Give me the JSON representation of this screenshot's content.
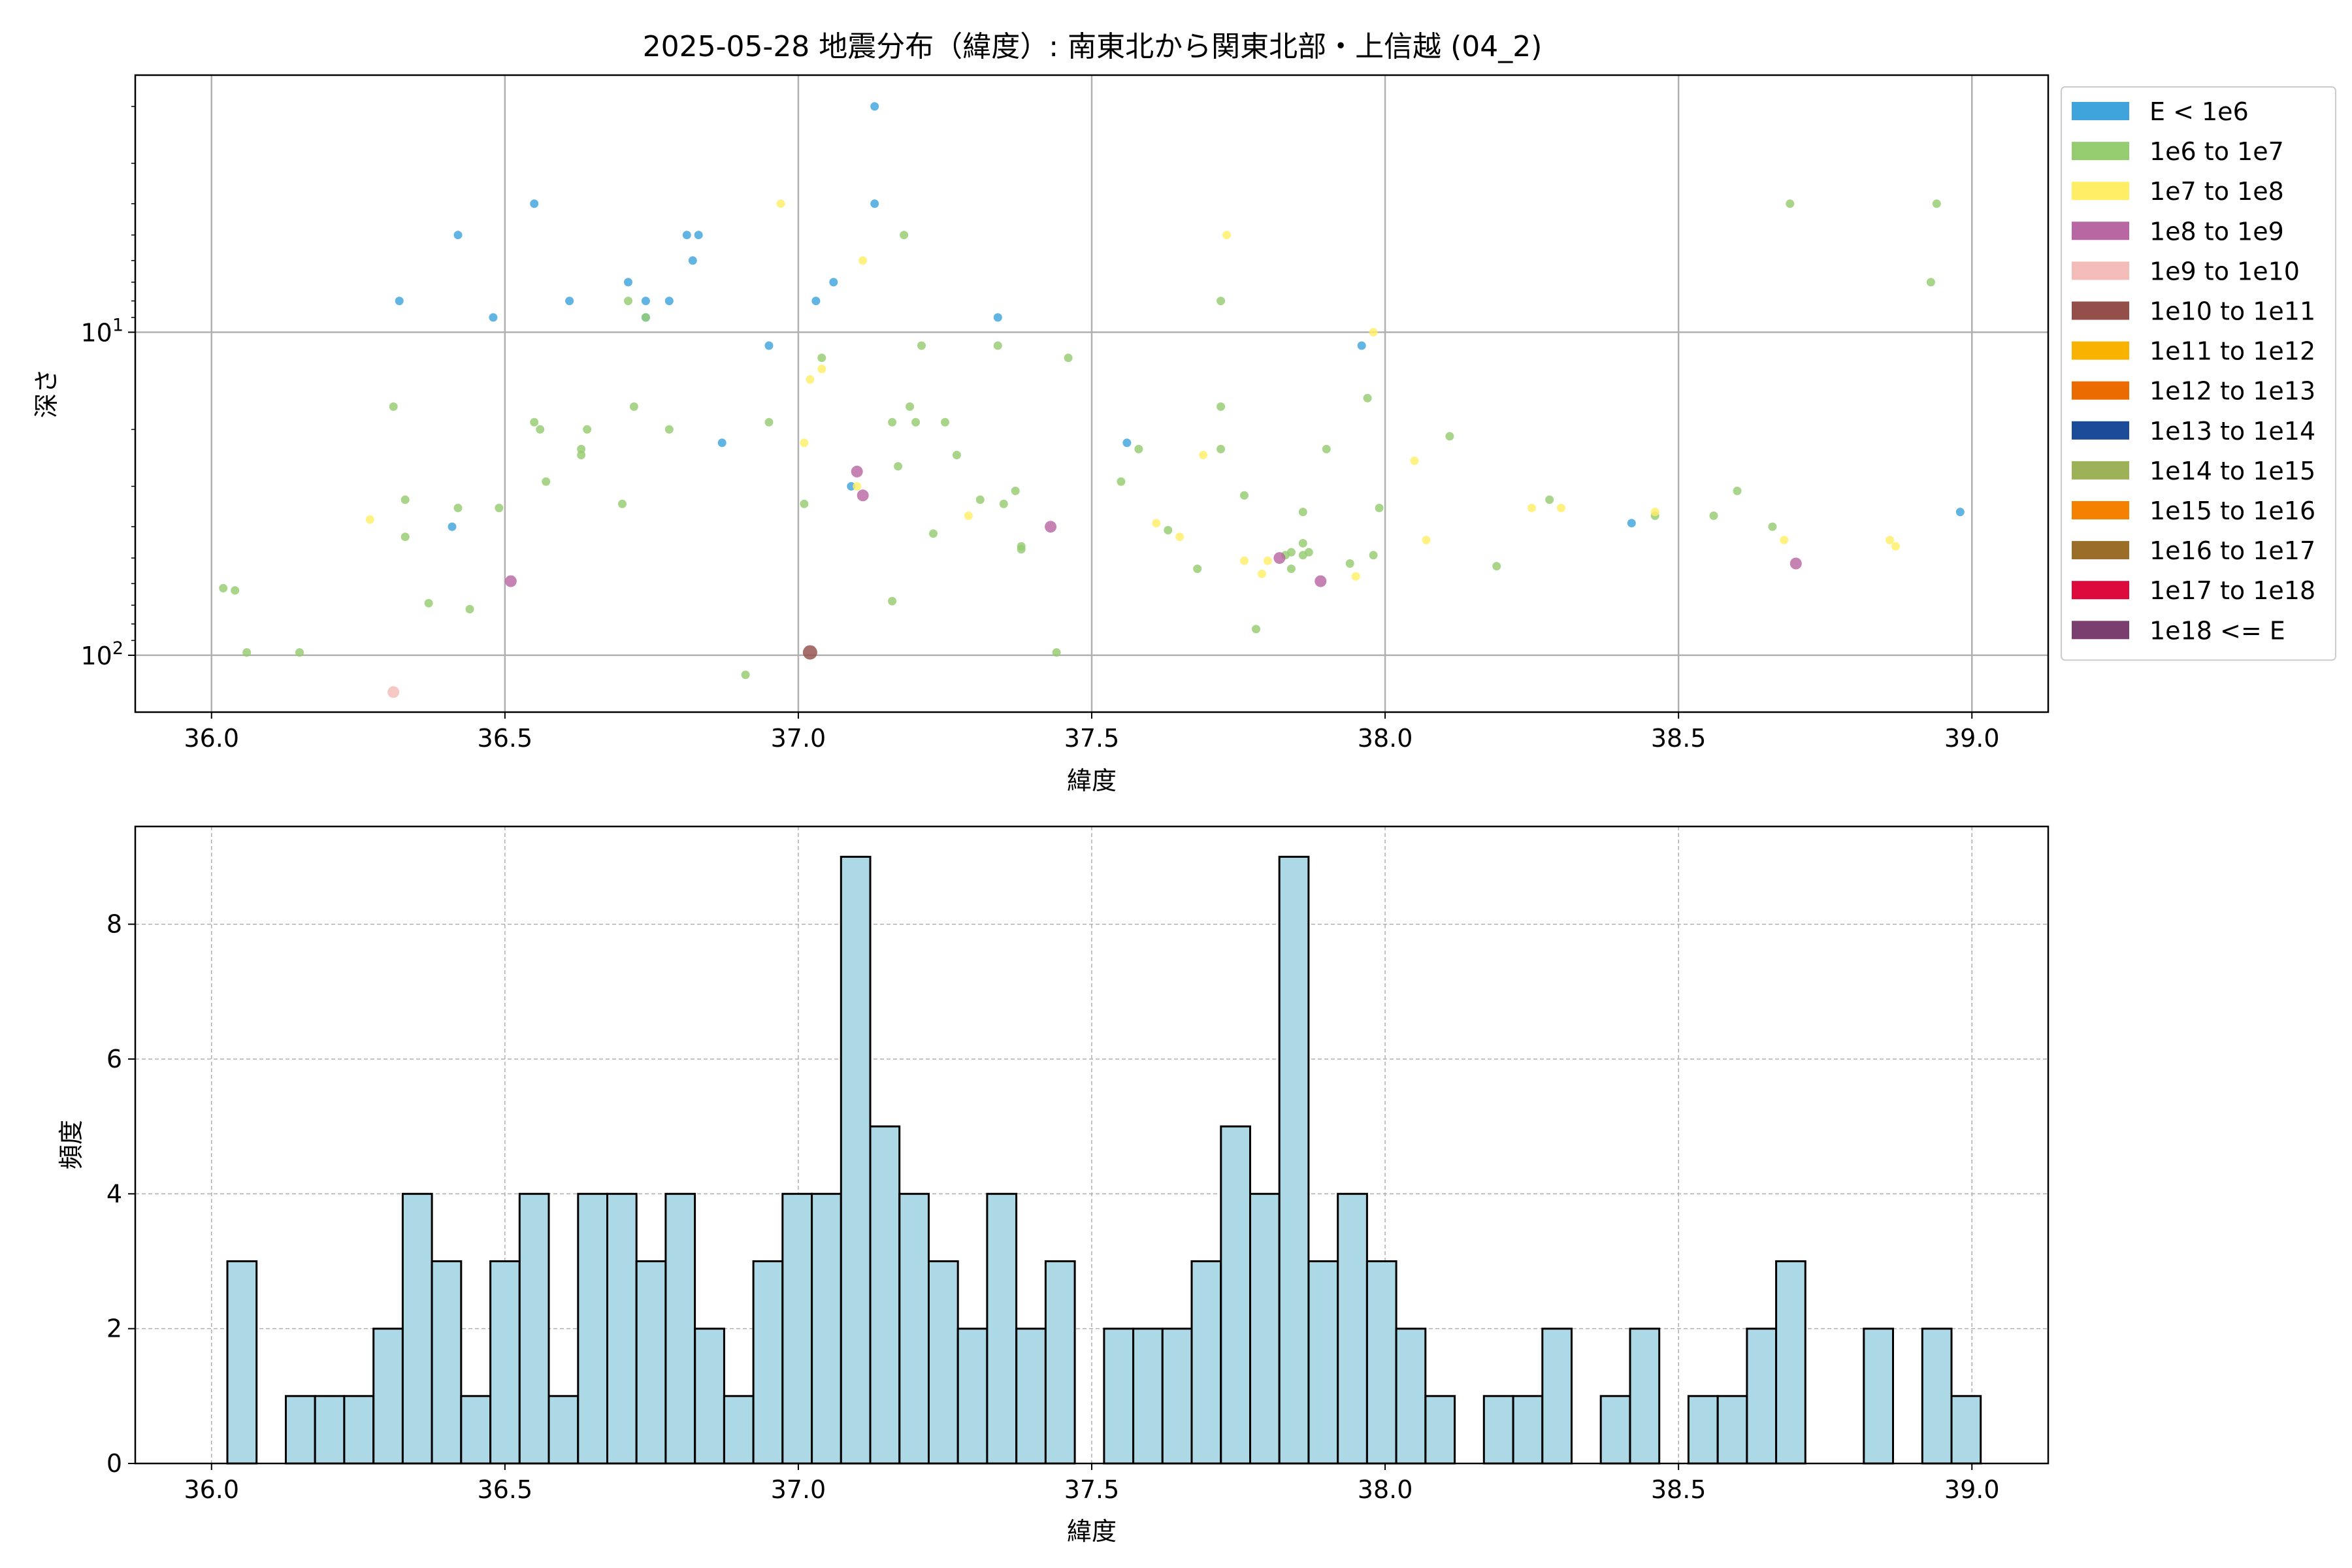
{
  "chart_data": [
    {
      "type": "scatter",
      "title": "2025-05-28 地震分布（緯度）: 南東北から関東北部・上信越 (04_2)",
      "xlabel": "緯度",
      "ylabel": "深さ",
      "y_scale": "log",
      "y_inverted": true,
      "xlim": [
        35.87,
        39.13
      ],
      "ylim": [
        150,
        1.6
      ],
      "x_ticks": [
        36.0,
        36.5,
        37.0,
        37.5,
        38.0,
        38.5,
        39.0
      ],
      "x_tick_labels": [
        "36.0",
        "36.5",
        "37.0",
        "37.5",
        "38.0",
        "38.5",
        "39.0"
      ],
      "y_ticks": [
        10,
        100
      ],
      "grid": true,
      "legend_position": "outside-right",
      "legend": [
        {
          "label": "E < 1e6",
          "color": "#3fa3dc"
        },
        {
          "label": "1e6 to 1e7",
          "color": "#95cc70"
        },
        {
          "label": "1e7 to 1e8",
          "color": "#ffee66"
        },
        {
          "label": "1e8 to 1e9",
          "color": "#b867a2"
        },
        {
          "label": "1e9 to 1e10",
          "color": "#f4bcb8"
        },
        {
          "label": "1e10 to 1e11",
          "color": "#944f4b"
        },
        {
          "label": "1e11 to 1e12",
          "color": "#f7b300"
        },
        {
          "label": "1e12 to 1e13",
          "color": "#ec6b00"
        },
        {
          "label": "1e13 to 1e14",
          "color": "#1a4a98"
        },
        {
          "label": "1e14 to 1e15",
          "color": "#9cb158"
        },
        {
          "label": "1e15 to 1e16",
          "color": "#f58100"
        },
        {
          "label": "1e16 to 1e17",
          "color": "#9a6d28"
        },
        {
          "label": "1e17 to 1e18",
          "color": "#dc0a3c"
        },
        {
          "label": "1e18 <= E",
          "color": "#7b3f6f"
        }
      ],
      "points": [
        {
          "x": 37.13,
          "y": 2.0,
          "c": 0
        },
        {
          "x": 36.55,
          "y": 4.0,
          "c": 0
        },
        {
          "x": 37.13,
          "y": 4.0,
          "c": 0
        },
        {
          "x": 36.42,
          "y": 5.0,
          "c": 0
        },
        {
          "x": 36.81,
          "y": 5.0,
          "c": 0
        },
        {
          "x": 36.83,
          "y": 5.0,
          "c": 0
        },
        {
          "x": 36.82,
          "y": 6.0,
          "c": 0
        },
        {
          "x": 36.71,
          "y": 7.0,
          "c": 0
        },
        {
          "x": 37.06,
          "y": 7.0,
          "c": 0
        },
        {
          "x": 36.32,
          "y": 8.0,
          "c": 0
        },
        {
          "x": 36.61,
          "y": 8.0,
          "c": 0
        },
        {
          "x": 36.74,
          "y": 8.0,
          "c": 0
        },
        {
          "x": 36.78,
          "y": 8.0,
          "c": 0
        },
        {
          "x": 37.03,
          "y": 8.0,
          "c": 0
        },
        {
          "x": 36.48,
          "y": 9.0,
          "c": 0
        },
        {
          "x": 36.74,
          "y": 9.0,
          "c": 0
        },
        {
          "x": 37.34,
          "y": 9.0,
          "c": 0
        },
        {
          "x": 36.95,
          "y": 11.0,
          "c": 0
        },
        {
          "x": 37.96,
          "y": 11.0,
          "c": 0
        },
        {
          "x": 36.87,
          "y": 22.0,
          "c": 0
        },
        {
          "x": 37.56,
          "y": 22.0,
          "c": 0
        },
        {
          "x": 37.09,
          "y": 30.0,
          "c": 0
        },
        {
          "x": 38.98,
          "y": 36.0,
          "c": 0
        },
        {
          "x": 36.41,
          "y": 40.0,
          "c": 0
        },
        {
          "x": 38.42,
          "y": 39.0,
          "c": 0
        },
        {
          "x": 38.69,
          "y": 4.0,
          "c": 1
        },
        {
          "x": 38.94,
          "y": 4.0,
          "c": 1
        },
        {
          "x": 37.18,
          "y": 5.0,
          "c": 1
        },
        {
          "x": 38.93,
          "y": 7.0,
          "c": 1
        },
        {
          "x": 36.71,
          "y": 8.0,
          "c": 1
        },
        {
          "x": 37.72,
          "y": 8.0,
          "c": 1
        },
        {
          "x": 36.74,
          "y": 9.0,
          "c": 1
        },
        {
          "x": 37.04,
          "y": 12.0,
          "c": 1
        },
        {
          "x": 37.21,
          "y": 11.0,
          "c": 1
        },
        {
          "x": 37.34,
          "y": 11.0,
          "c": 1
        },
        {
          "x": 37.46,
          "y": 12.0,
          "c": 1
        },
        {
          "x": 37.97,
          "y": 16.0,
          "c": 1
        },
        {
          "x": 36.31,
          "y": 17.0,
          "c": 1
        },
        {
          "x": 36.72,
          "y": 17.0,
          "c": 1
        },
        {
          "x": 37.19,
          "y": 17.0,
          "c": 1
        },
        {
          "x": 37.72,
          "y": 17.0,
          "c": 1
        },
        {
          "x": 36.55,
          "y": 19.0,
          "c": 1
        },
        {
          "x": 36.56,
          "y": 20.0,
          "c": 1
        },
        {
          "x": 36.64,
          "y": 20.0,
          "c": 1
        },
        {
          "x": 36.95,
          "y": 19.0,
          "c": 1
        },
        {
          "x": 37.16,
          "y": 19.0,
          "c": 1
        },
        {
          "x": 37.2,
          "y": 19.0,
          "c": 1
        },
        {
          "x": 37.25,
          "y": 19.0,
          "c": 1
        },
        {
          "x": 36.78,
          "y": 20.0,
          "c": 1
        },
        {
          "x": 38.11,
          "y": 21.0,
          "c": 1
        },
        {
          "x": 36.63,
          "y": 23.0,
          "c": 1
        },
        {
          "x": 36.63,
          "y": 24.0,
          "c": 1
        },
        {
          "x": 37.27,
          "y": 24.0,
          "c": 1
        },
        {
          "x": 37.58,
          "y": 23.0,
          "c": 1
        },
        {
          "x": 37.72,
          "y": 23.0,
          "c": 1
        },
        {
          "x": 37.9,
          "y": 23.0,
          "c": 1
        },
        {
          "x": 37.17,
          "y": 26.0,
          "c": 1
        },
        {
          "x": 36.57,
          "y": 29.0,
          "c": 1
        },
        {
          "x": 37.55,
          "y": 29.0,
          "c": 1
        },
        {
          "x": 37.37,
          "y": 31.0,
          "c": 1
        },
        {
          "x": 36.33,
          "y": 33.0,
          "c": 1
        },
        {
          "x": 36.7,
          "y": 34.0,
          "c": 1
        },
        {
          "x": 37.01,
          "y": 34.0,
          "c": 1
        },
        {
          "x": 37.31,
          "y": 33.0,
          "c": 1
        },
        {
          "x": 37.35,
          "y": 34.0,
          "c": 1
        },
        {
          "x": 37.76,
          "y": 32.0,
          "c": 1
        },
        {
          "x": 38.28,
          "y": 33.0,
          "c": 1
        },
        {
          "x": 38.6,
          "y": 31.0,
          "c": 1
        },
        {
          "x": 36.42,
          "y": 35.0,
          "c": 1
        },
        {
          "x": 36.49,
          "y": 35.0,
          "c": 1
        },
        {
          "x": 37.86,
          "y": 36.0,
          "c": 1
        },
        {
          "x": 37.99,
          "y": 35.0,
          "c": 1
        },
        {
          "x": 38.46,
          "y": 37.0,
          "c": 1
        },
        {
          "x": 38.56,
          "y": 37.0,
          "c": 1
        },
        {
          "x": 38.66,
          "y": 40.0,
          "c": 1
        },
        {
          "x": 36.33,
          "y": 43.0,
          "c": 1
        },
        {
          "x": 37.23,
          "y": 42.0,
          "c": 1
        },
        {
          "x": 37.63,
          "y": 41.0,
          "c": 1
        },
        {
          "x": 37.38,
          "y": 46.0,
          "c": 1
        },
        {
          "x": 37.38,
          "y": 47.0,
          "c": 1
        },
        {
          "x": 37.86,
          "y": 45.0,
          "c": 1
        },
        {
          "x": 37.84,
          "y": 48.0,
          "c": 1
        },
        {
          "x": 37.87,
          "y": 48.0,
          "c": 1
        },
        {
          "x": 37.83,
          "y": 49.0,
          "c": 1
        },
        {
          "x": 37.86,
          "y": 49.0,
          "c": 1
        },
        {
          "x": 37.98,
          "y": 49.0,
          "c": 1
        },
        {
          "x": 37.94,
          "y": 52.0,
          "c": 1
        },
        {
          "x": 37.68,
          "y": 54.0,
          "c": 1
        },
        {
          "x": 37.84,
          "y": 54.0,
          "c": 1
        },
        {
          "x": 38.19,
          "y": 53.0,
          "c": 1
        },
        {
          "x": 36.02,
          "y": 62.0,
          "c": 1
        },
        {
          "x": 36.04,
          "y": 63.0,
          "c": 1
        },
        {
          "x": 36.37,
          "y": 69.0,
          "c": 1
        },
        {
          "x": 36.44,
          "y": 72.0,
          "c": 1
        },
        {
          "x": 37.16,
          "y": 68.0,
          "c": 1
        },
        {
          "x": 37.78,
          "y": 83.0,
          "c": 1
        },
        {
          "x": 36.06,
          "y": 98.0,
          "c": 1
        },
        {
          "x": 36.15,
          "y": 98.0,
          "c": 1
        },
        {
          "x": 37.44,
          "y": 98.0,
          "c": 1
        },
        {
          "x": 36.91,
          "y": 115.0,
          "c": 1
        },
        {
          "x": 36.97,
          "y": 4.0,
          "c": 2
        },
        {
          "x": 37.73,
          "y": 5.0,
          "c": 2
        },
        {
          "x": 37.11,
          "y": 6.0,
          "c": 2
        },
        {
          "x": 37.98,
          "y": 10.0,
          "c": 2
        },
        {
          "x": 37.04,
          "y": 13.0,
          "c": 2
        },
        {
          "x": 37.02,
          "y": 14.0,
          "c": 2
        },
        {
          "x": 37.01,
          "y": 22.0,
          "c": 2
        },
        {
          "x": 37.69,
          "y": 24.0,
          "c": 2
        },
        {
          "x": 38.05,
          "y": 25.0,
          "c": 2
        },
        {
          "x": 37.1,
          "y": 30.0,
          "c": 2
        },
        {
          "x": 38.25,
          "y": 35.0,
          "c": 2
        },
        {
          "x": 38.3,
          "y": 35.0,
          "c": 2
        },
        {
          "x": 38.46,
          "y": 36.0,
          "c": 2
        },
        {
          "x": 37.29,
          "y": 37.0,
          "c": 2
        },
        {
          "x": 36.27,
          "y": 38.0,
          "c": 2
        },
        {
          "x": 37.61,
          "y": 39.0,
          "c": 2
        },
        {
          "x": 37.65,
          "y": 43.0,
          "c": 2
        },
        {
          "x": 38.07,
          "y": 44.0,
          "c": 2
        },
        {
          "x": 38.68,
          "y": 44.0,
          "c": 2
        },
        {
          "x": 38.86,
          "y": 44.0,
          "c": 2
        },
        {
          "x": 38.87,
          "y": 46.0,
          "c": 2
        },
        {
          "x": 37.76,
          "y": 51.0,
          "c": 2
        },
        {
          "x": 37.8,
          "y": 51.0,
          "c": 2
        },
        {
          "x": 37.79,
          "y": 56.0,
          "c": 2
        },
        {
          "x": 37.95,
          "y": 57.0,
          "c": 2
        },
        {
          "x": 37.1,
          "y": 27.0,
          "c": 3
        },
        {
          "x": 37.11,
          "y": 32.0,
          "c": 3
        },
        {
          "x": 37.43,
          "y": 40.0,
          "c": 3
        },
        {
          "x": 37.82,
          "y": 50.0,
          "c": 3
        },
        {
          "x": 38.7,
          "y": 52.0,
          "c": 3
        },
        {
          "x": 36.51,
          "y": 59.0,
          "c": 3
        },
        {
          "x": 37.89,
          "y": 59.0,
          "c": 3
        },
        {
          "x": 36.31,
          "y": 130.0,
          "c": 4
        },
        {
          "x": 37.02,
          "y": 98.0,
          "c": 5
        }
      ]
    },
    {
      "type": "bar",
      "xlabel": "緯度",
      "ylabel": "頻度",
      "xlim": [
        35.87,
        39.13
      ],
      "ylim": [
        0,
        9.45
      ],
      "x_ticks": [
        36.0,
        36.5,
        37.0,
        37.5,
        38.0,
        38.5,
        39.0
      ],
      "x_tick_labels": [
        "36.0",
        "36.5",
        "37.0",
        "37.5",
        "38.0",
        "38.5",
        "39.0"
      ],
      "y_ticks": [
        0,
        2,
        4,
        6,
        8
      ],
      "grid": true,
      "bar_color": "#add8e6",
      "bin_start": 36.027,
      "bin_width": 0.0498,
      "counts": [
        3,
        0,
        1,
        1,
        1,
        2,
        4,
        3,
        1,
        3,
        4,
        1,
        4,
        4,
        3,
        4,
        2,
        1,
        3,
        4,
        4,
        9,
        5,
        4,
        3,
        2,
        4,
        2,
        3,
        0,
        2,
        2,
        2,
        3,
        5,
        4,
        9,
        3,
        4,
        3,
        2,
        1,
        0,
        1,
        1,
        2,
        0,
        1,
        2,
        0,
        1,
        1,
        2,
        3,
        0,
        0,
        2,
        0,
        2,
        1
      ]
    }
  ]
}
